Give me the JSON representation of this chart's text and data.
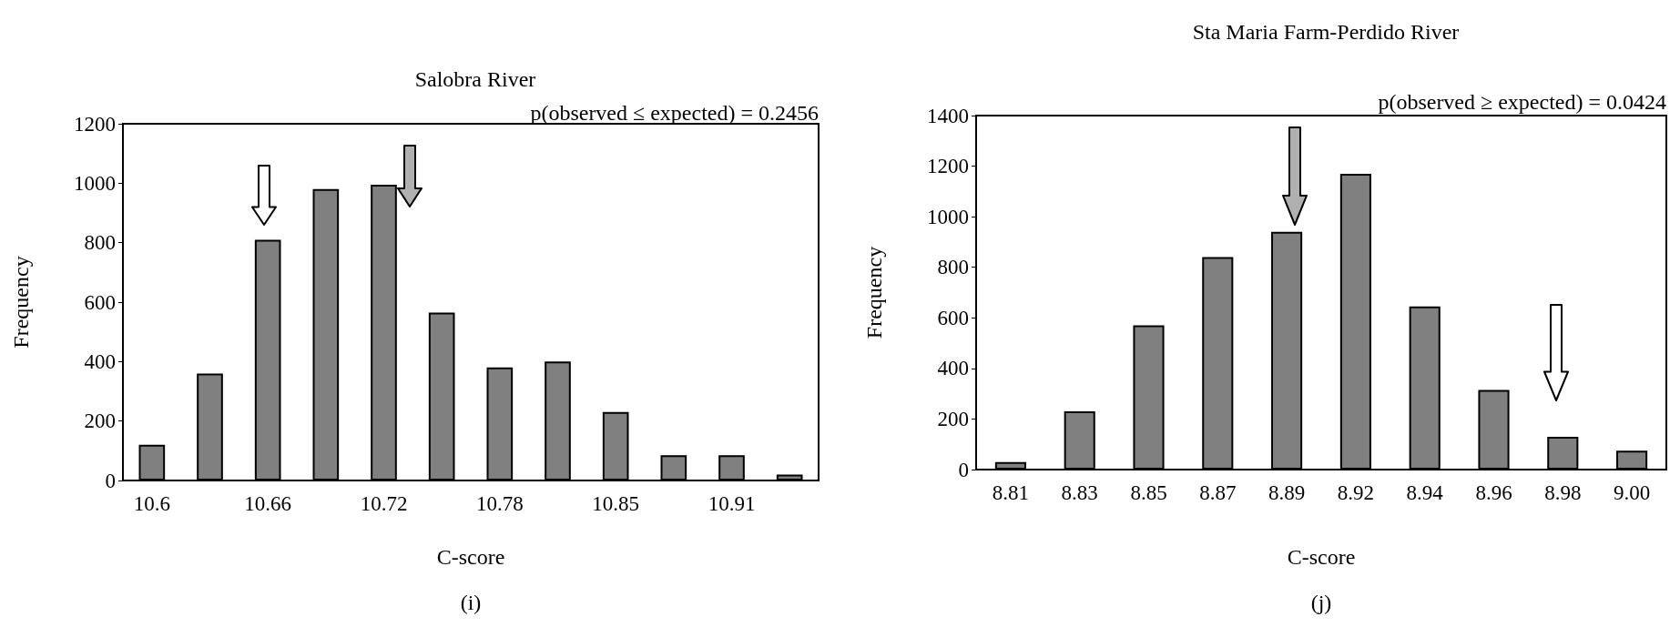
{
  "chart_data": [
    {
      "type": "bar",
      "title": "Salobra River",
      "xlabel": "C-score",
      "ylabel": "Frequency",
      "categories": [
        "10.6",
        null,
        "10.66",
        null,
        "10.72",
        null,
        "10.78",
        null,
        "10.85",
        null,
        "10.91",
        null
      ],
      "values": [
        120,
        360,
        810,
        980,
        995,
        565,
        380,
        400,
        230,
        85,
        85,
        20
      ],
      "color": "#808080",
      "ylim": [
        0,
        1200
      ],
      "yticks": [
        0,
        200,
        400,
        600,
        800,
        1000,
        1200
      ],
      "annotations": [
        "p(observed ≤ expected) = 0.2456",
        "(i)"
      ]
    },
    {
      "type": "bar",
      "title": "Sta Maria Farm-Perdido River",
      "xlabel": "C-score",
      "ylabel": "Frequency",
      "categories": [
        "8.81",
        "8.83",
        "8.85",
        "8.87",
        "8.89",
        "8.92",
        "8.94",
        "8.96",
        "8.98",
        "9.00"
      ],
      "values": [
        30,
        230,
        570,
        840,
        940,
        1170,
        645,
        315,
        130,
        75
      ],
      "color": "#808080",
      "ylim": [
        0,
        1400
      ],
      "yticks": [
        0,
        200,
        400,
        600,
        800,
        1000,
        1200,
        1400
      ],
      "annotations": [
        "p(observed ≥ expected) = 0.0424",
        "(j)"
      ]
    }
  ]
}
